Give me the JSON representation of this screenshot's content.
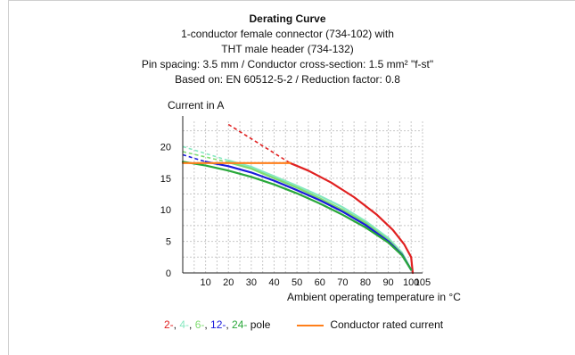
{
  "title_lines": [
    "Derating Curve",
    "1-conductor female connector (734-102) with",
    "THT male header (734-132)",
    "Pin spacing: 3.5 mm / Conductor cross-section: 1.5 mm² \"f-st\"",
    "Based on: EN 60512-5-2 / Reduction factor: 0.8"
  ],
  "legend": {
    "poles": [
      {
        "text": "2-",
        "color": "#e02020"
      },
      {
        "text": ", ",
        "color": "#111111"
      },
      {
        "text": "4-",
        "color": "#86e8c0"
      },
      {
        "text": ", ",
        "color": "#111111"
      },
      {
        "text": "6-",
        "color": "#7fdc70"
      },
      {
        "text": ", ",
        "color": "#111111"
      },
      {
        "text": "12-",
        "color": "#1a1adc"
      },
      {
        "text": ", ",
        "color": "#111111"
      },
      {
        "text": "24-",
        "color": "#29a83a"
      },
      {
        "text": " pole",
        "color": "#111111"
      }
    ],
    "rated_label": "Conductor rated current",
    "rated_color": "#ff7f1a"
  },
  "chart_data": {
    "type": "line",
    "title": "Derating Curve",
    "xlabel": "Ambient operating temperature in °C",
    "ylabel": "Current in A",
    "xlim": [
      0,
      105
    ],
    "ylim": [
      0,
      24
    ],
    "xticks": [
      10,
      20,
      30,
      40,
      50,
      60,
      70,
      80,
      90,
      100,
      105
    ],
    "yticks": [
      0,
      5,
      10,
      15,
      20
    ],
    "grid": true,
    "series": [
      {
        "name": "2-",
        "color": "#e02020",
        "dashed": [
          [
            20,
            23.5
          ],
          [
            47,
            17.4
          ]
        ],
        "points": [
          [
            47,
            17.4
          ],
          [
            55,
            16.2
          ],
          [
            65,
            14.3
          ],
          [
            75,
            12.0
          ],
          [
            85,
            9.2
          ],
          [
            92,
            6.8
          ],
          [
            97,
            4.5
          ],
          [
            100,
            2.5
          ],
          [
            100.7,
            0
          ]
        ]
      },
      {
        "name": "4-",
        "color": "#86e8c0",
        "dashed": [
          [
            0,
            20.0
          ],
          [
            20,
            17.8
          ]
        ],
        "points": [
          [
            20,
            17.8
          ],
          [
            30,
            16.8
          ],
          [
            40,
            15.3
          ],
          [
            50,
            13.8
          ],
          [
            60,
            12.2
          ],
          [
            70,
            10.4
          ],
          [
            80,
            8.2
          ],
          [
            90,
            5.5
          ],
          [
            96,
            3.2
          ],
          [
            100,
            0.5
          ]
        ]
      },
      {
        "name": "6-",
        "color": "#7fdc70",
        "dashed": [
          [
            0,
            19.2
          ],
          [
            20,
            17.5
          ]
        ],
        "points": [
          [
            20,
            17.5
          ],
          [
            30,
            16.5
          ],
          [
            40,
            15.0
          ],
          [
            50,
            13.5
          ],
          [
            60,
            11.8
          ],
          [
            70,
            10.0
          ],
          [
            80,
            7.9
          ],
          [
            90,
            5.2
          ],
          [
            96,
            3.0
          ],
          [
            100,
            0.5
          ]
        ]
      },
      {
        "name": "12-",
        "color": "#1a1adc",
        "dashed": [
          [
            0,
            18.7
          ],
          [
            10,
            17.6
          ]
        ],
        "points": [
          [
            10,
            17.6
          ],
          [
            20,
            16.9
          ],
          [
            30,
            15.9
          ],
          [
            40,
            14.6
          ],
          [
            50,
            13.1
          ],
          [
            60,
            11.5
          ],
          [
            70,
            9.7
          ],
          [
            80,
            7.6
          ],
          [
            90,
            5.0
          ],
          [
            96,
            2.9
          ],
          [
            100,
            0.5
          ]
        ]
      },
      {
        "name": "24-",
        "color": "#29a83a",
        "dashed": [],
        "points": [
          [
            0,
            17.6
          ],
          [
            10,
            17.0
          ],
          [
            20,
            16.2
          ],
          [
            30,
            15.2
          ],
          [
            40,
            14.0
          ],
          [
            50,
            12.6
          ],
          [
            60,
            11.0
          ],
          [
            70,
            9.2
          ],
          [
            80,
            7.2
          ],
          [
            90,
            4.8
          ],
          [
            96,
            2.8
          ],
          [
            100,
            0.5
          ]
        ]
      },
      {
        "name": "Conductor rated current",
        "color": "#ff7f1a",
        "dashed": [],
        "points": [
          [
            0,
            17.4
          ],
          [
            47,
            17.4
          ]
        ]
      }
    ]
  }
}
